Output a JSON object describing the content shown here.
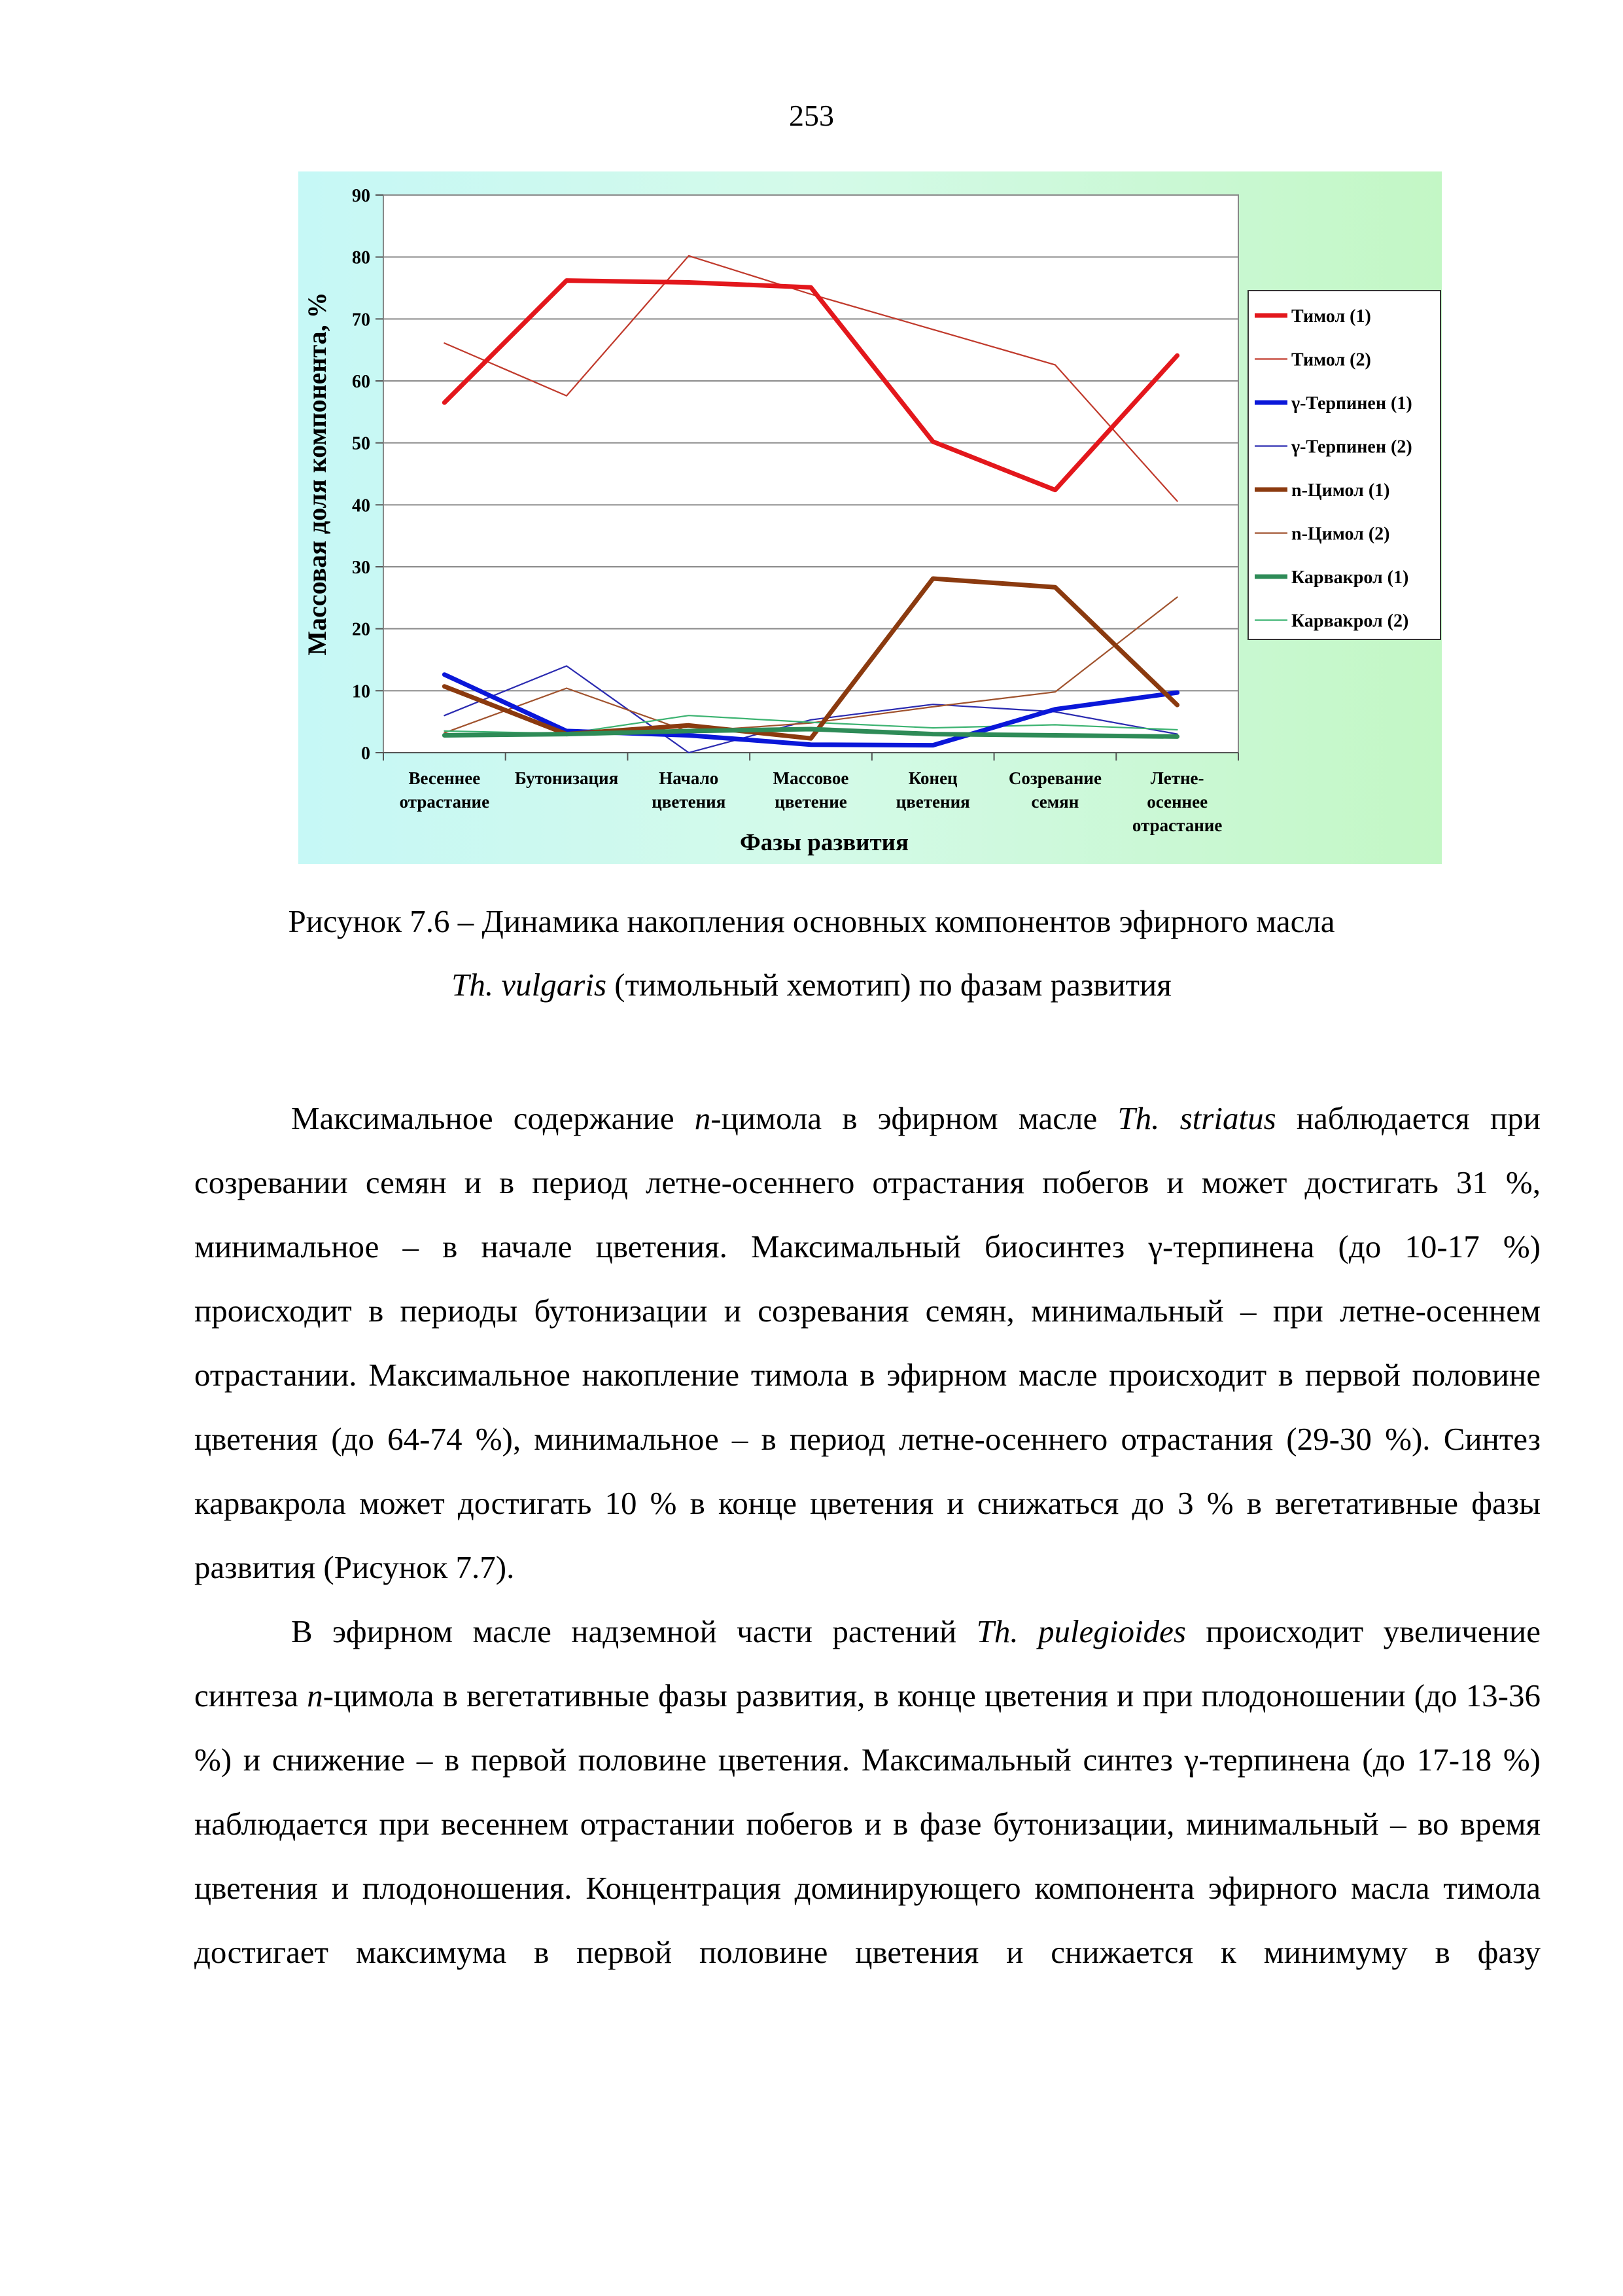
{
  "page": {
    "number": "253"
  },
  "chart_data": {
    "type": "line",
    "ylabel": "Массовая доля компонента, %",
    "xlabel": "Фазы развития",
    "ylim": [
      0,
      90
    ],
    "yticks": [
      0,
      10,
      20,
      30,
      40,
      50,
      60,
      70,
      80,
      90
    ],
    "grid": true,
    "legend_position": "right",
    "categories": [
      [
        "Весеннее",
        "отрастание"
      ],
      [
        "Бутонизация"
      ],
      [
        "Начало",
        "цветения"
      ],
      [
        "Массовое",
        "цветение"
      ],
      [
        "Конец",
        "цветения"
      ],
      [
        "Созревание",
        "семян"
      ],
      [
        "Летне-",
        "осеннее",
        "отрастание"
      ]
    ],
    "series": [
      {
        "name": "Тимол (1)",
        "color": "#e3171c",
        "style": "thick",
        "values": [
          56.5,
          76.2,
          75.9,
          75.1,
          50.2,
          42.4,
          64.1
        ]
      },
      {
        "name": "Тимол (2)",
        "color": "#c0392b",
        "style": "thin",
        "values": [
          66.1,
          57.6,
          80.2,
          74.0,
          68.3,
          62.6,
          40.6
        ]
      },
      {
        "name": "γ-Терпинен (1)",
        "color": "#0a17d9",
        "style": "thick",
        "values": [
          12.6,
          3.5,
          2.8,
          1.3,
          1.2,
          7.0,
          9.7
        ]
      },
      {
        "name": "γ-Терпинен (2)",
        "color": "#2a2ab0",
        "style": "thin",
        "values": [
          6.0,
          14.0,
          0.0,
          5.3,
          7.8,
          6.6,
          3.0
        ]
      },
      {
        "name": "n-Цимол (1)",
        "color": "#8b3a0f",
        "style": "thick",
        "values": [
          10.7,
          3.0,
          4.4,
          2.3,
          28.1,
          26.7,
          7.7
        ]
      },
      {
        "name": "n-Цимол (2)",
        "color": "#a0522d",
        "style": "thin",
        "values": [
          3.2,
          10.4,
          3.4,
          4.8,
          7.4,
          9.8,
          25.1
        ]
      },
      {
        "name": "Карвакрол (1)",
        "color": "#2e8b57",
        "style": "thick",
        "values": [
          2.8,
          3.0,
          3.5,
          3.8,
          3.0,
          2.8,
          2.6
        ]
      },
      {
        "name": "Карвакрол (2)",
        "color": "#3cb371",
        "style": "thin",
        "values": [
          3.5,
          3.1,
          6.0,
          4.9,
          4.0,
          4.5,
          3.7
        ]
      }
    ]
  },
  "caption": {
    "line1": "Рисунок 7.6 – Динамика накопления основных компонентов эфирного масла",
    "line2_species": "Th. vulgaris",
    "line2_rest": " (тимольный хемотип) по фазам развития"
  },
  "paragraph1": {
    "s1": "Максимальное содержание ",
    "s2": "n",
    "s3": "-цимола в эфирном масле ",
    "s4": "Th. striatus",
    "s5": " наблюдается при созревании семян и в период летне-осеннего отрастания побегов и может достигать 31 %, минимальное – в начале цветения. Максимальный биосинтез γ-терпинена (до 10-17 %) происходит в периоды бутонизации и созревания семян, минимальный – при летне-осеннем отрастании. Максимальное накопление тимола в эфирном масле происходит в первой половине цветения (до 64-74 %), минимальное – в период летне-осеннего отрастания (29-30 %). Синтез карвакрола может достигать 10 % в конце цветения и снижаться до 3 % в вегетативные фазы развития (Рисунок 7.7)."
  },
  "paragraph2": {
    "s1": "В эфирном масле надземной части растений ",
    "s2": "Th. pulegioides",
    "s3": " происходит увеличение синтеза ",
    "s4": "n",
    "s5": "-цимола в вегетативные фазы развития, в конце цветения и при плодоношении (до 13-36 %) и снижение – в первой половине цветения. Максимальный синтез γ-терпинена (до 17-18 %) наблюдается при весеннем отрастании побегов и в фазе бутонизации, минимальный – во время цветения и плодоношения. Концентрация доминирующего компонента эфирного масла тимола достигает максимума в первой половине цветения и снижается к минимуму в фазу"
  }
}
